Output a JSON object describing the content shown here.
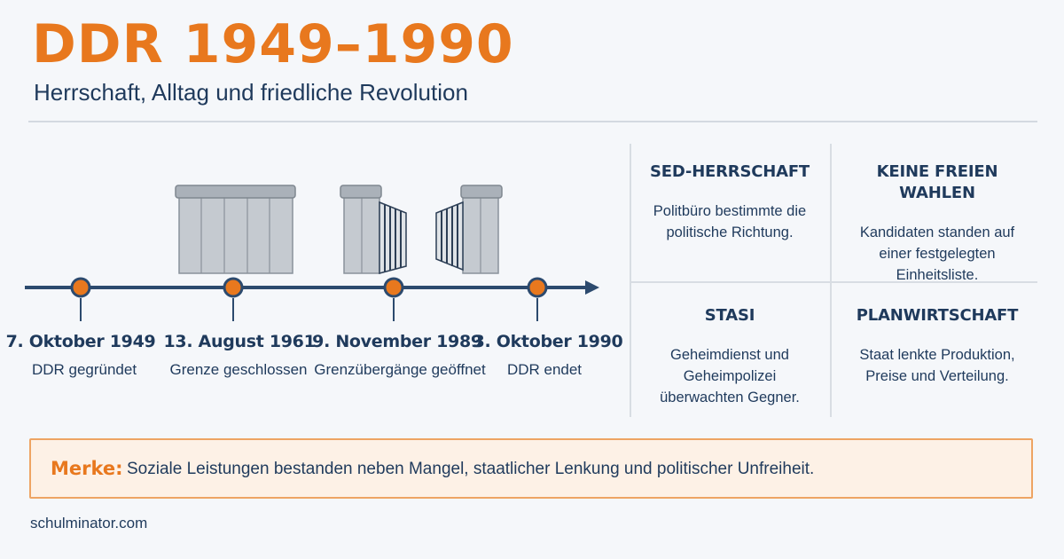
{
  "header": {
    "title": "DDR 1949–1990",
    "subtitle": "Herrschaft, Alltag und friedliche Revolution"
  },
  "timeline": {
    "events": [
      {
        "date": "7. Oktober 1949",
        "desc": "DDR gegründet"
      },
      {
        "date": "13. August 1961",
        "desc": "Grenze geschlossen"
      },
      {
        "date": "9. November 1989",
        "desc": "Grenzübergänge geöffnet"
      },
      {
        "date": "3. Oktober 1990",
        "desc": "DDR endet"
      }
    ]
  },
  "facts": [
    {
      "title": "SED-HERRSCHAFT",
      "text": "Politbüro bestimmte die\npolitische Richtung."
    },
    {
      "title": "KEINE FREIEN WAHLEN",
      "text": "Kandidaten standen auf\neiner festgelegten\nEinheitsliste."
    },
    {
      "title": "STASI",
      "text": "Geheimdienst und\nGeheimpolizei\nüberwachten Gegner."
    },
    {
      "title": "PLANWIRTSCHAFT",
      "text": "Staat lenkte Produktion,\nPreise und Verteilung."
    }
  ],
  "note": {
    "label": "Merke:",
    "text": "Soziale Leistungen bestanden neben Mangel, staatlicher Lenkung und politischer Unfreiheit."
  },
  "footer": {
    "source": "schulminator.com"
  },
  "colors": {
    "accent": "#e8781e",
    "navy": "#1f3a5c",
    "wall": "#c5cad0",
    "note_bg": "#fdf1e6"
  }
}
